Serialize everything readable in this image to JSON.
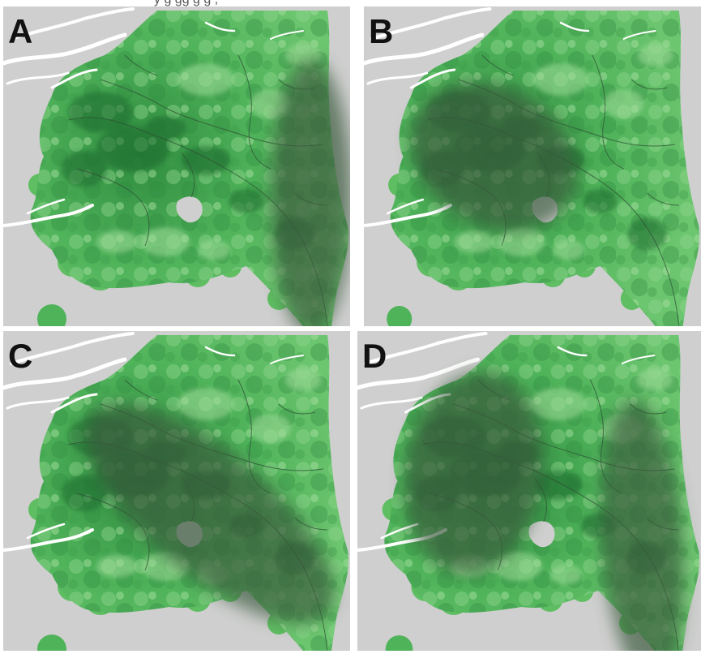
{
  "caption": {
    "fragment": "y                         g gg g               g        ,"
  },
  "panels": [
    {
      "id": "A",
      "label": "A"
    },
    {
      "id": "B",
      "label": "B"
    },
    {
      "id": "C",
      "label": "C"
    },
    {
      "id": "D",
      "label": "D"
    }
  ],
  "colors": {
    "sea": "#cfcfcf",
    "land_light": "#7fcf7f",
    "land_mid": "#4fb35a",
    "land_dark": "#2e8a3e",
    "land_darkest": "#1f6b2d",
    "overlay": "#3a5a3e",
    "coast": "#ffffff",
    "border": "#2f4f35"
  },
  "icons": {
    "overlay_shape": "shaded-ellipse-region",
    "offshore_dot": "green-circle-marker"
  }
}
